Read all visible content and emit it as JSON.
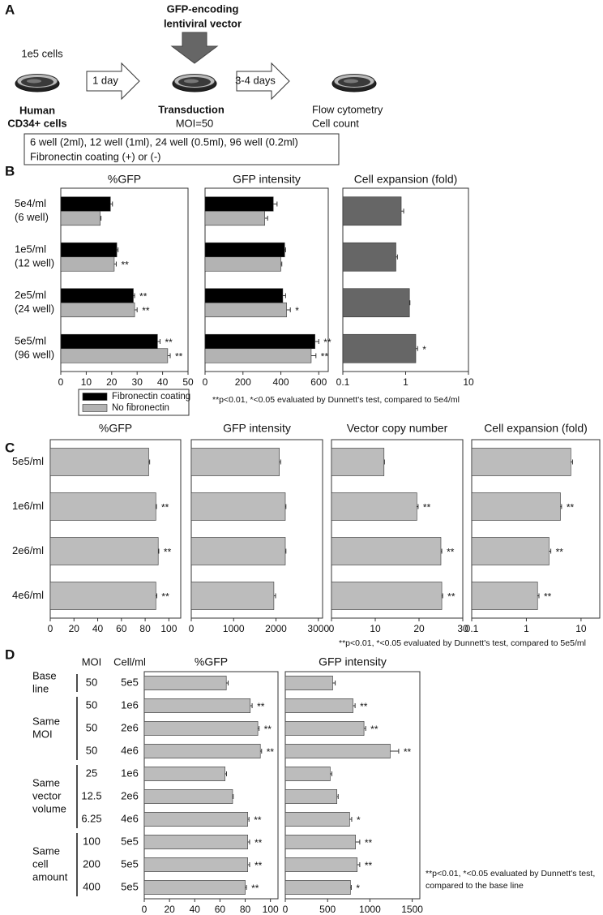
{
  "panel_labels": [
    "A",
    "B",
    "C",
    "D"
  ],
  "schematic": {
    "vector": [
      "GFP-encoding",
      "lentiviral vector"
    ],
    "start_cells": "1e5 cells",
    "step1": "1 day",
    "step2": "3-4 days",
    "source": [
      "Human",
      "CD34+ cells"
    ],
    "transduction": "Transduction",
    "moi": "MOI=50",
    "readout": [
      "Flow cytometry",
      "Cell count"
    ],
    "conditions": [
      "6 well (2ml), 12 well (1ml), 24 well (0.5ml), 96 well (0.2ml)",
      "Fibronectin coating (+) or (-)"
    ]
  },
  "chart_data": [
    {
      "type": "bar",
      "orientation": "horizontal",
      "title": "%GFP",
      "categories": [
        [
          "5e4/ml",
          "(6 well)"
        ],
        [
          "1e5/ml",
          "(12 well)"
        ],
        [
          "2e5/ml",
          "(24 well)"
        ],
        [
          "5e5/ml",
          "(96 well)"
        ]
      ],
      "series": [
        {
          "name": "Fibronectin coating",
          "color": "#000000",
          "values": [
            19.5,
            22,
            28.5,
            38
          ],
          "errors": [
            0.8,
            0.5,
            0.5,
            1
          ],
          "annotations": [
            null,
            null,
            "**",
            "**"
          ]
        },
        {
          "name": "No fibronectin",
          "color": "#b3b3b3",
          "values": [
            15.5,
            21,
            29,
            42
          ],
          "errors": [
            0.3,
            0.8,
            1,
            1
          ],
          "annotations": [
            null,
            "**",
            "**",
            "**"
          ]
        }
      ],
      "xlim": [
        0,
        50
      ],
      "xticks": [
        0,
        10,
        20,
        30,
        40,
        50
      ],
      "legend": "below"
    },
    {
      "type": "bar",
      "orientation": "horizontal",
      "title": "GFP intensity",
      "series": [
        {
          "color": "#000000",
          "values": [
            360,
            420,
            410,
            580
          ],
          "errors": [
            20,
            5,
            15,
            20
          ],
          "annotations": [
            null,
            null,
            null,
            "**"
          ]
        },
        {
          "color": "#b3b3b3",
          "values": [
            315,
            400,
            430,
            560
          ],
          "errors": [
            15,
            5,
            20,
            25
          ],
          "annotations": [
            null,
            null,
            "*",
            "**"
          ]
        }
      ],
      "xlim": [
        0,
        650
      ],
      "xticks": [
        0,
        200,
        400,
        600
      ]
    },
    {
      "type": "bar",
      "orientation": "horizontal",
      "title": "Cell expansion (fold)",
      "xscale": "log",
      "series": [
        {
          "color": "#666666",
          "values": [
            0.85,
            0.7,
            1.15,
            1.45
          ],
          "errors": [
            0.08,
            0.04,
            0.02,
            0.1
          ],
          "annotations": [
            null,
            null,
            null,
            "*"
          ]
        }
      ],
      "xlim": [
        0.1,
        10
      ],
      "xticks": [
        0.1,
        1,
        10
      ]
    },
    {
      "type": "bar",
      "orientation": "horizontal",
      "title": "%GFP",
      "categories": [
        "5e5/ml",
        "1e6/ml",
        "2e6/ml",
        "4e6/ml"
      ],
      "series": [
        {
          "color": "#bcbcbc",
          "values": [
            83,
            89,
            91,
            89
          ],
          "errors": [
            0.8,
            0.5,
            0.5,
            0.8
          ],
          "annotations": [
            null,
            "**",
            "**",
            "**"
          ]
        }
      ],
      "xlim": [
        0,
        110
      ],
      "xticks": [
        0,
        20,
        40,
        60,
        80,
        100
      ]
    },
    {
      "type": "bar",
      "orientation": "horizontal",
      "title": "GFP intensity",
      "series": [
        {
          "color": "#bcbcbc",
          "values": [
            2080,
            2220,
            2220,
            1950
          ],
          "errors": [
            30,
            15,
            15,
            40
          ],
          "annotations": [
            null,
            null,
            null,
            null
          ]
        }
      ],
      "xlim": [
        0,
        3100
      ],
      "xticks": [
        0,
        1000,
        2000,
        3000
      ]
    },
    {
      "type": "bar",
      "orientation": "horizontal",
      "title": "Vector copy number",
      "series": [
        {
          "color": "#bcbcbc",
          "values": [
            12,
            19.5,
            25,
            25.2
          ],
          "errors": [
            0.1,
            0.3,
            0.2,
            0.2
          ],
          "annotations": [
            null,
            "**",
            "**",
            "**"
          ]
        }
      ],
      "xlim": [
        0,
        30
      ],
      "xticks": [
        0,
        10,
        20,
        30
      ]
    },
    {
      "type": "bar",
      "orientation": "horizontal",
      "title": "Cell expansion (fold)",
      "xscale": "log",
      "series": [
        {
          "color": "#bcbcbc",
          "values": [
            6.5,
            4.2,
            2.6,
            1.6
          ],
          "errors": [
            0.5,
            0.2,
            0.2,
            0.1
          ],
          "annotations": [
            null,
            "**",
            "**",
            "**"
          ]
        }
      ],
      "xlim": [
        0.1,
        22
      ],
      "xticks": [
        0.1,
        1,
        10
      ]
    },
    {
      "type": "bar",
      "orientation": "horizontal",
      "title": "%GFP",
      "series": [
        {
          "color": "#bcbcbc",
          "values": [
            65,
            84,
            90,
            92,
            64,
            70,
            82,
            82,
            82,
            80
          ],
          "errors": [
            1.5,
            1.5,
            1,
            1,
            1.2,
            0.5,
            1,
            1.5,
            1.5,
            1
          ],
          "annotations": [
            null,
            "**",
            "**",
            "**",
            null,
            null,
            "**",
            "**",
            "**",
            "**"
          ]
        }
      ],
      "xlim": [
        0,
        106
      ],
      "xticks": [
        0,
        20,
        40,
        60,
        80,
        100
      ]
    },
    {
      "type": "bar",
      "orientation": "horizontal",
      "title": "GFP intensity",
      "series": [
        {
          "color": "#bcbcbc",
          "values": [
            560,
            800,
            930,
            1240,
            530,
            610,
            760,
            830,
            850,
            770
          ],
          "errors": [
            30,
            25,
            20,
            100,
            20,
            15,
            25,
            50,
            30,
            10
          ],
          "annotations": [
            null,
            "**",
            "**",
            "**",
            null,
            null,
            "*",
            "**",
            "**",
            "*"
          ]
        }
      ],
      "xlim": [
        0,
        1590
      ],
      "xticks": [
        0,
        500,
        1000,
        1500
      ]
    }
  ],
  "panel_d_table": {
    "moi_header": "MOI",
    "cell_header": "Cell/ml",
    "moi": [
      50,
      50,
      50,
      50,
      25,
      12.5,
      6.25,
      100,
      200,
      400
    ],
    "cells": [
      "5e5",
      "1e6",
      "2e6",
      "4e6",
      "1e6",
      "2e6",
      "4e6",
      "5e5",
      "5e5",
      "5e5"
    ],
    "groups": [
      [
        "Base",
        "line"
      ],
      [
        "Same",
        "MOI"
      ],
      [
        "Same",
        "vector",
        "volume"
      ],
      [
        "Same",
        "cell",
        "amount"
      ]
    ]
  },
  "notes": {
    "b": "**p<0.01, *<0.05 evaluated by Dunnett's test, compared to 5e4/ml",
    "c": "**p<0.01, *<0.05 evaluated by Dunnett's test, compared to 5e5/ml",
    "d": [
      "**p<0.01, *<0.05 evaluated by Dunnett's test,",
      "compared to the base line"
    ]
  }
}
